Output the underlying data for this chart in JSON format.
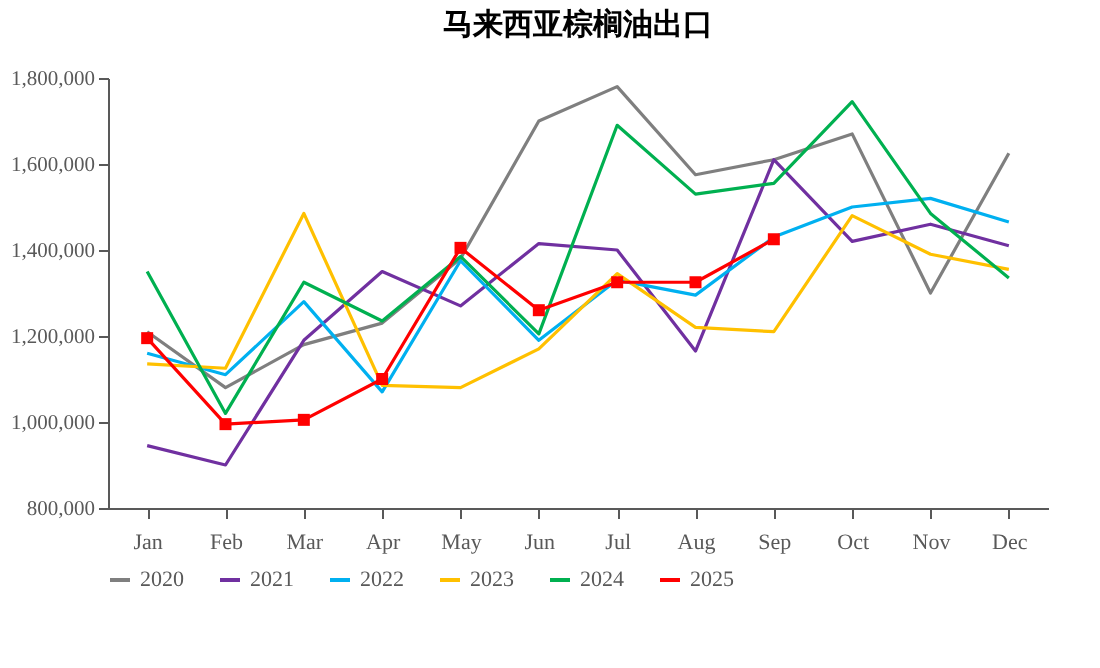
{
  "chart_data": {
    "type": "line",
    "title": "马来西亚棕榈油出口",
    "categories": [
      "Jan",
      "Feb",
      "Mar",
      "Apr",
      "May",
      "Jun",
      "Jul",
      "Aug",
      "Sep",
      "Oct",
      "Nov",
      "Dec"
    ],
    "ylim": [
      800000,
      1800000
    ],
    "yticks": [
      {
        "value": 800000,
        "label": "800,000"
      },
      {
        "value": 1000000,
        "label": "1,000,000"
      },
      {
        "value": 1200000,
        "label": "1,200,000"
      },
      {
        "value": 1400000,
        "label": "1,400,000"
      },
      {
        "value": 1600000,
        "label": "1,600,000"
      },
      {
        "value": 1800000,
        "label": "1,800,000"
      }
    ],
    "grid": false,
    "legend": "bottom",
    "series": [
      {
        "name": "2020",
        "color": "#7f7f7f",
        "values": [
          1210000,
          1080000,
          1180000,
          1230000,
          1380000,
          1700000,
          1780000,
          1575000,
          1610000,
          1670000,
          1300000,
          1625000
        ]
      },
      {
        "name": "2021",
        "color": "#7030a0",
        "values": [
          945000,
          900000,
          1190000,
          1350000,
          1270000,
          1415000,
          1400000,
          1165000,
          1610000,
          1420000,
          1460000,
          1410000
        ]
      },
      {
        "name": "2022",
        "color": "#00b0f0",
        "values": [
          1160000,
          1110000,
          1280000,
          1070000,
          1375000,
          1190000,
          1330000,
          1295000,
          1430000,
          1500000,
          1520000,
          1465000
        ]
      },
      {
        "name": "2023",
        "color": "#ffc000",
        "values": [
          1135000,
          1125000,
          1485000,
          1085000,
          1080000,
          1170000,
          1345000,
          1220000,
          1210000,
          1480000,
          1390000,
          1355000
        ]
      },
      {
        "name": "2024",
        "color": "#00b050",
        "values": [
          1350000,
          1020000,
          1325000,
          1235000,
          1385000,
          1205000,
          1690000,
          1530000,
          1555000,
          1745000,
          1485000,
          1335000
        ]
      },
      {
        "name": "2025",
        "color": "#ff0000",
        "marker": "square",
        "values": [
          1195000,
          995000,
          1005000,
          1100000,
          1405000,
          1260000,
          1325000,
          1325000,
          1425000,
          null,
          null,
          null
        ]
      }
    ]
  }
}
